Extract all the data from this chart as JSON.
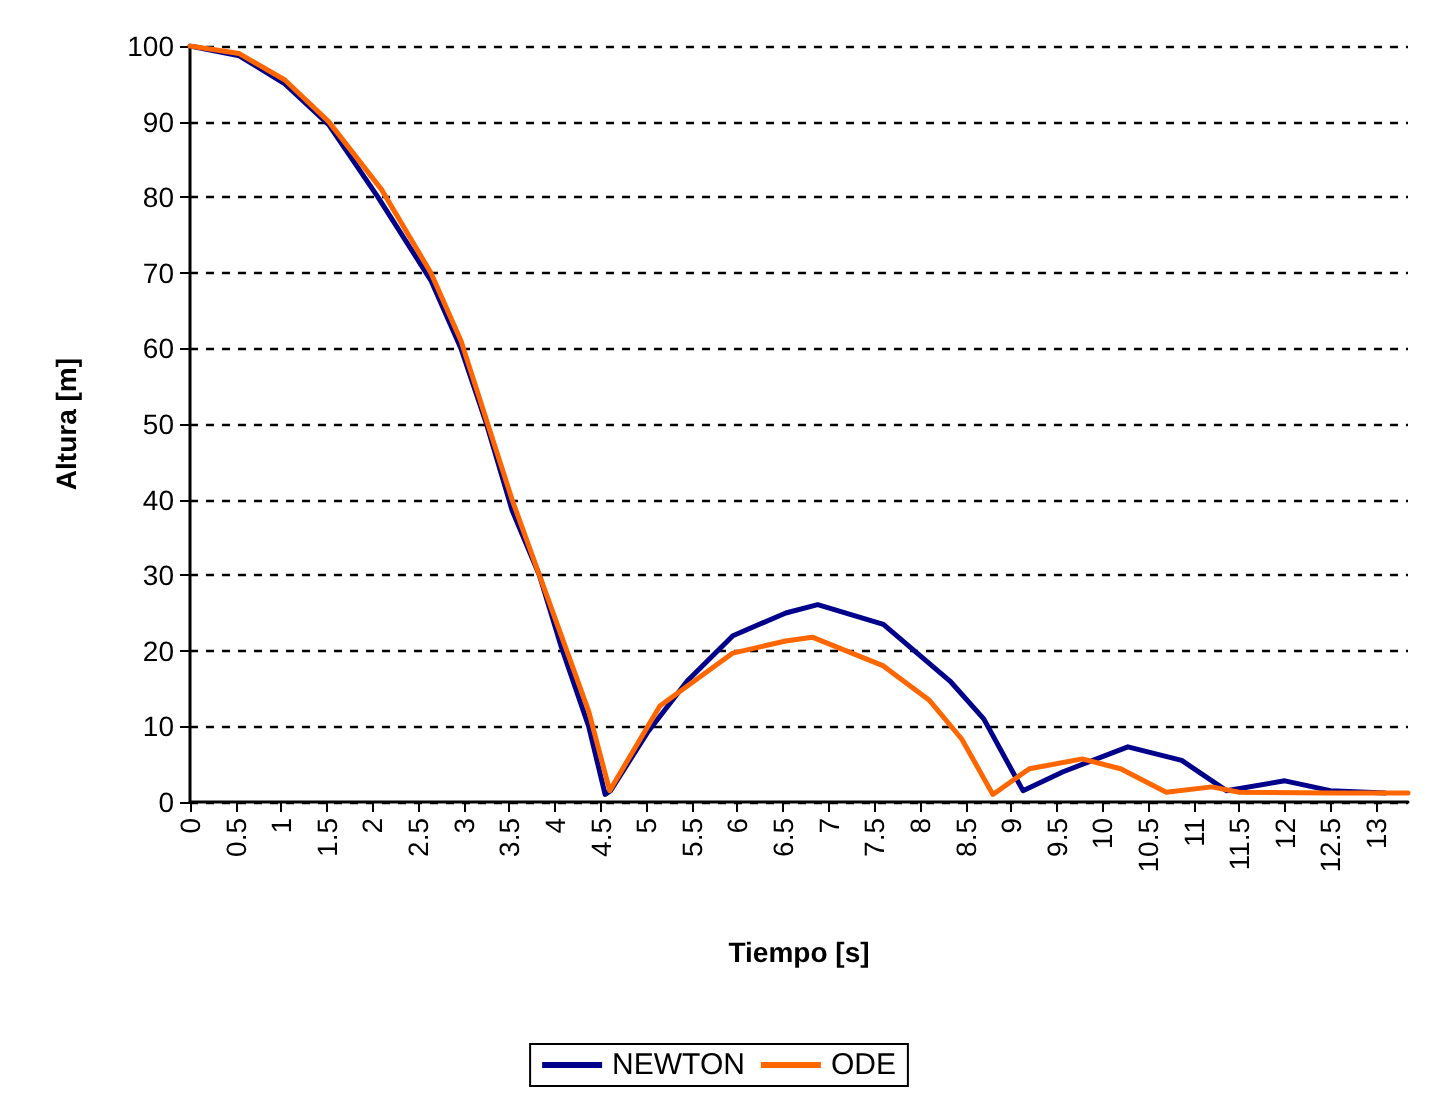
{
  "chart_data": {
    "type": "line",
    "xlabel": "Tiempo [s]",
    "ylabel": "Altura [m]",
    "xlim": [
      0,
      13.35
    ],
    "xticks": [
      0,
      0.5,
      1,
      1.5,
      2,
      2.5,
      3,
      3.5,
      4,
      4.5,
      5,
      5.5,
      6,
      6.5,
      7,
      7.5,
      8,
      8.5,
      9,
      9.5,
      10,
      10.5,
      11,
      11.5,
      12,
      12.5,
      13
    ],
    "ylim": [
      0,
      100
    ],
    "yticks": [
      0,
      10,
      20,
      30,
      40,
      50,
      60,
      70,
      80,
      90,
      100
    ],
    "grid": "y",
    "legend": "bottom",
    "marker": "none",
    "line_style": "solid",
    "series": [
      {
        "name": "NEWTON",
        "color": "#00008b",
        "x": [
          0,
          0.54,
          1.04,
          1.52,
          2.06,
          2.64,
          2.97,
          3.25,
          3.53,
          3.83,
          4.07,
          4.37,
          4.55,
          4.61,
          5.02,
          5.45,
          5.95,
          6.53,
          6.88,
          7.6,
          8.33,
          8.7,
          9.13,
          9.57,
          10.28,
          10.87,
          11.36,
          12.0,
          12.5,
          13.1
        ],
        "values": [
          100,
          98.7,
          95,
          89.6,
          80,
          69,
          60,
          50,
          38.6,
          30,
          20.5,
          10,
          1,
          1.5,
          9.3,
          16,
          22,
          25,
          26.1,
          23.5,
          16,
          11,
          1.5,
          4,
          7.3,
          5.5,
          1.5,
          2.8,
          1.5,
          1.2
        ]
      },
      {
        "name": "ODE",
        "color": "#ff6600",
        "x": [
          0,
          0.54,
          1.04,
          1.52,
          2.1,
          2.64,
          2.97,
          3.53,
          4.07,
          4.37,
          4.6,
          5.15,
          5.95,
          6.53,
          6.82,
          7.6,
          8.1,
          8.46,
          8.8,
          9.2,
          9.78,
          10.2,
          10.7,
          11.2,
          11.5,
          12.5,
          13.35
        ],
        "values": [
          100,
          99,
          95.5,
          90,
          81,
          70,
          61,
          40,
          22,
          12,
          1.5,
          12.7,
          19.7,
          21.3,
          21.8,
          18,
          13.5,
          8.3,
          1,
          4.4,
          5.7,
          4.4,
          1.3,
          2,
          1.3,
          1.2,
          1.2
        ]
      }
    ]
  }
}
